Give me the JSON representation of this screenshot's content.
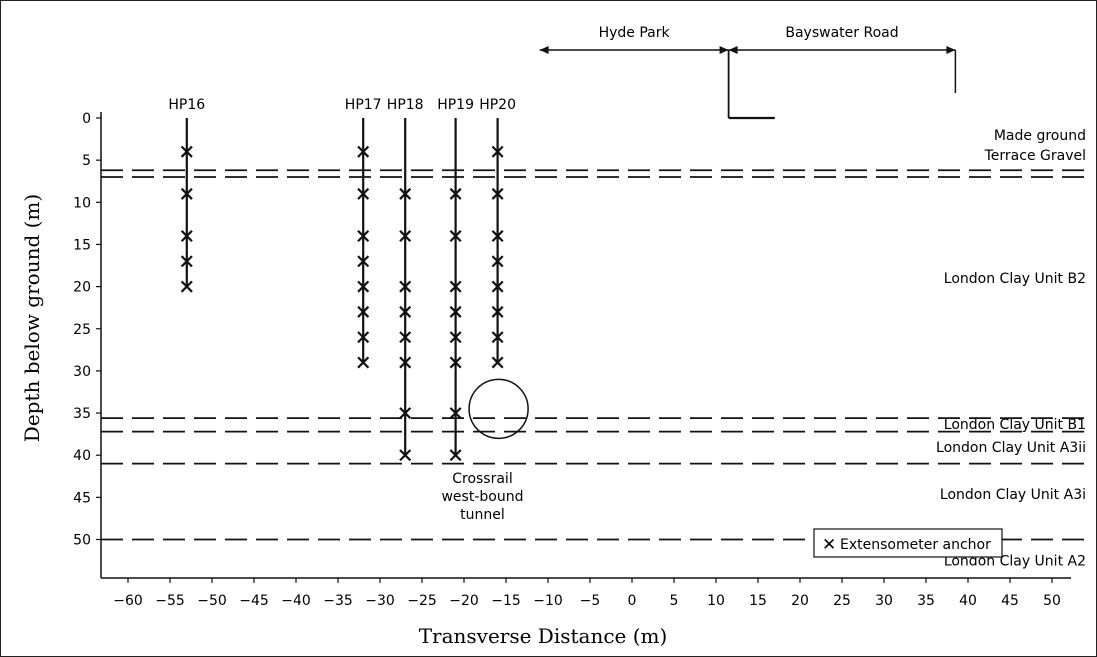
{
  "title": "",
  "xlabel": "Transverse Distance (m)",
  "ylabel": "Depth below ground (m)",
  "x_ticks": [
    -60,
    -55,
    -50,
    -45,
    -40,
    -35,
    -30,
    -25,
    -20,
    -15,
    -10,
    -5,
    0,
    5,
    10,
    15,
    20,
    25,
    30,
    35,
    40,
    45,
    50
  ],
  "y_ticks": [
    0,
    5,
    10,
    15,
    20,
    25,
    30,
    35,
    40,
    45,
    50
  ],
  "xlim": [
    -63,
    52
  ],
  "ylim": [
    0,
    55
  ],
  "boreholes": [
    {
      "name": "HP16",
      "x": -53,
      "bottom": 20,
      "anchors": [
        4,
        9,
        14,
        17,
        20
      ]
    },
    {
      "name": "HP17",
      "x": -32,
      "bottom": 29,
      "anchors": [
        4,
        9,
        14,
        17,
        20,
        23,
        26,
        29
      ]
    },
    {
      "name": "HP18",
      "x": -27,
      "bottom": 40,
      "anchors": [
        9,
        14,
        20,
        23,
        26,
        29,
        35,
        40
      ]
    },
    {
      "name": "HP19",
      "x": -21,
      "bottom": 40,
      "anchors": [
        9,
        14,
        20,
        23,
        26,
        29,
        35,
        40
      ]
    },
    {
      "name": "HP20",
      "x": -16,
      "bottom": 29,
      "anchors": [
        4,
        9,
        14,
        17,
        20,
        23,
        26,
        29
      ]
    }
  ],
  "strata_boundaries": [
    6.2,
    7.0,
    35.6,
    37.2,
    41.0,
    50.0
  ],
  "strata_labels": [
    {
      "text": "Made ground",
      "depth": 2
    },
    {
      "text": "Terrace Gravel",
      "depth": 4.4
    },
    {
      "text": "London Clay Unit B2",
      "depth": 19
    },
    {
      "text": "London Clay Unit B1",
      "depth": 36.3
    },
    {
      "text": "London Clay Unit A3ii",
      "depth": 39
    },
    {
      "text": "London Clay Unit A3i",
      "depth": 44.6
    },
    {
      "text": "London Clay Unit A2",
      "depth": 52.5
    }
  ],
  "tunnel": {
    "label_line1": "Crossrail",
    "label_line2": "west-bound",
    "label_line3": "tunnel",
    "x": -16,
    "depth": 34.5,
    "diameter": 7
  },
  "surface_zones": [
    {
      "name": "Hyde Park",
      "x_start": -11,
      "x_end": 11.5
    },
    {
      "name": "Bayswater Road",
      "x_start": 11.5,
      "x_end": 38.5
    }
  ],
  "legend": {
    "marker": "✕",
    "label": "Extensometer anchor"
  }
}
